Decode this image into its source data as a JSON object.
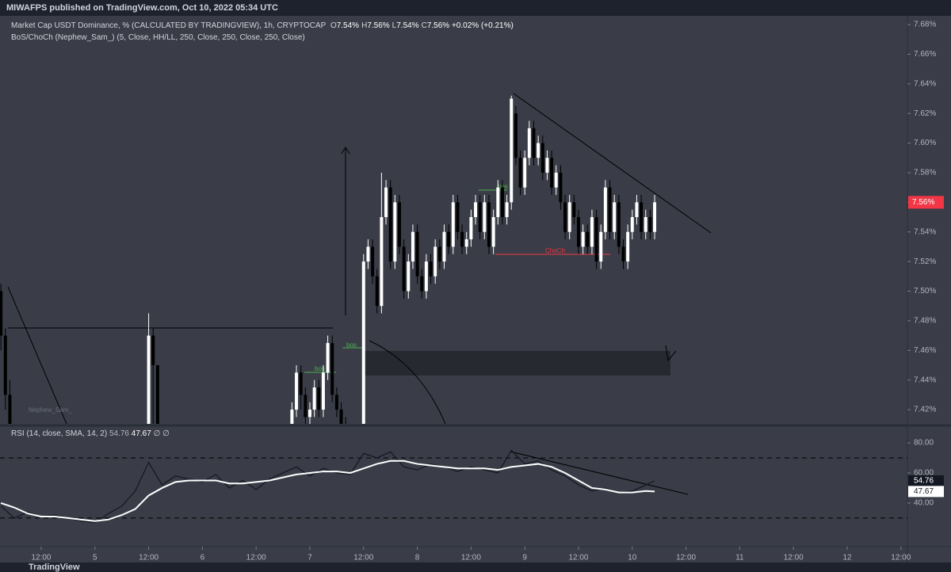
{
  "header": {
    "text": "MIWAFPS published on TradingView.com, Oct 10, 2022 05:34 UTC"
  },
  "footer": {
    "text": "TradingView"
  },
  "chart_data": [
    {
      "type": "candlestick",
      "title": "Market Cap USDT Dominance, % (CALCULATED BY TRADINGVIEW), 1h, CRYPTOCAP",
      "subtitle": "BoS/ChoCh (Nephew_Sam_) (5, Close, HH/LL, 250, Close, 250, Close, 250, Close)",
      "ohlc_legend": [
        {
          "key": "O",
          "value": "7.54%"
        },
        {
          "key": "H",
          "value": "7.56%"
        },
        {
          "key": "L",
          "value": "7.54%"
        },
        {
          "key": "C",
          "value": "7.56%"
        }
      ],
      "change": "+0.02% (+0.21%)",
      "last_label": "7.56%",
      "annotations": [
        "bos",
        "bos",
        "bos",
        "ChoCh",
        "Nephew_Sam_"
      ],
      "up_color": "#ffffff",
      "down_color": "#000000",
      "label_color": "#f23645",
      "x": [
        3,
        4,
        5,
        36,
        37,
        38,
        68,
        69,
        70,
        71,
        72,
        73,
        74,
        75,
        76,
        77,
        78,
        79,
        80,
        84,
        85,
        86,
        87,
        88,
        89,
        90,
        91,
        92,
        93,
        94,
        95,
        96,
        97,
        98,
        99,
        100,
        101,
        102,
        103,
        104,
        105,
        106,
        107,
        108,
        109,
        110,
        111,
        112,
        113,
        114,
        115,
        116,
        117,
        118,
        119,
        120,
        121,
        122,
        123,
        124,
        125,
        126,
        127,
        128,
        129,
        130,
        131,
        132,
        133,
        134,
        135,
        136,
        137,
        138,
        139,
        140,
        141,
        142,
        143,
        144,
        145,
        146,
        147,
        148,
        149
      ],
      "open": [
        7.5,
        7.47,
        7.43,
        7.4,
        7.47,
        7.45,
        7.4,
        7.42,
        7.445,
        7.43,
        7.415,
        7.42,
        7.435,
        7.42,
        7.445,
        7.465,
        7.43,
        7.42,
        7.41,
        7.41,
        7.52,
        7.53,
        7.51,
        7.49,
        7.55,
        7.57,
        7.52,
        7.56,
        7.53,
        7.5,
        7.52,
        7.54,
        7.51,
        7.5,
        7.52,
        7.51,
        7.53,
        7.52,
        7.54,
        7.53,
        7.56,
        7.54,
        7.53,
        7.535,
        7.55,
        7.56,
        7.54,
        7.56,
        7.53,
        7.55,
        7.57,
        7.55,
        7.56,
        7.62,
        7.59,
        7.57,
        7.59,
        7.61,
        7.59,
        7.6,
        7.58,
        7.59,
        7.57,
        7.58,
        7.56,
        7.54,
        7.56,
        7.55,
        7.53,
        7.54,
        7.53,
        7.55,
        7.52,
        7.54,
        7.57,
        7.54,
        7.56,
        7.53,
        7.52,
        7.54,
        7.55,
        7.56,
        7.54,
        7.55,
        7.54
      ],
      "high": [
        7.505,
        7.475,
        7.44,
        7.485,
        7.475,
        7.45,
        7.425,
        7.45,
        7.45,
        7.435,
        7.425,
        7.44,
        7.44,
        7.45,
        7.47,
        7.47,
        7.435,
        7.425,
        7.415,
        7.525,
        7.535,
        7.535,
        7.515,
        7.58,
        7.575,
        7.575,
        7.565,
        7.565,
        7.535,
        7.525,
        7.545,
        7.545,
        7.515,
        7.525,
        7.525,
        7.535,
        7.535,
        7.545,
        7.545,
        7.565,
        7.565,
        7.545,
        7.54,
        7.555,
        7.565,
        7.565,
        7.565,
        7.565,
        7.555,
        7.575,
        7.575,
        7.565,
        7.632,
        7.625,
        7.595,
        7.595,
        7.615,
        7.615,
        7.605,
        7.605,
        7.595,
        7.595,
        7.585,
        7.585,
        7.565,
        7.565,
        7.565,
        7.555,
        7.545,
        7.545,
        7.555,
        7.555,
        7.545,
        7.575,
        7.575,
        7.565,
        7.565,
        7.535,
        7.545,
        7.555,
        7.565,
        7.565,
        7.555,
        7.555,
        7.565
      ],
      "low": [
        7.46,
        7.42,
        7.4,
        7.39,
        7.41,
        7.4,
        7.4,
        7.415,
        7.42,
        7.41,
        7.405,
        7.415,
        7.415,
        7.415,
        7.44,
        7.425,
        7.415,
        7.405,
        7.395,
        7.405,
        7.515,
        7.505,
        7.485,
        7.485,
        7.545,
        7.515,
        7.515,
        7.525,
        7.495,
        7.495,
        7.515,
        7.505,
        7.495,
        7.495,
        7.505,
        7.505,
        7.515,
        7.515,
        7.525,
        7.525,
        7.535,
        7.525,
        7.525,
        7.53,
        7.545,
        7.535,
        7.535,
        7.525,
        7.525,
        7.545,
        7.545,
        7.545,
        7.555,
        7.585,
        7.565,
        7.565,
        7.585,
        7.585,
        7.585,
        7.575,
        7.575,
        7.565,
        7.565,
        7.555,
        7.535,
        7.535,
        7.545,
        7.525,
        7.525,
        7.525,
        7.525,
        7.515,
        7.515,
        7.535,
        7.535,
        7.535,
        7.525,
        7.515,
        7.515,
        7.535,
        7.545,
        7.535,
        7.535,
        7.535,
        7.535
      ],
      "close": [
        7.47,
        7.43,
        7.41,
        7.47,
        7.45,
        7.41,
        7.42,
        7.445,
        7.43,
        7.415,
        7.42,
        7.435,
        7.42,
        7.445,
        7.465,
        7.43,
        7.42,
        7.41,
        7.4,
        7.52,
        7.53,
        7.51,
        7.49,
        7.55,
        7.57,
        7.52,
        7.56,
        7.53,
        7.5,
        7.52,
        7.54,
        7.51,
        7.5,
        7.52,
        7.51,
        7.53,
        7.52,
        7.54,
        7.53,
        7.56,
        7.54,
        7.53,
        7.535,
        7.55,
        7.56,
        7.54,
        7.56,
        7.53,
        7.55,
        7.57,
        7.55,
        7.56,
        7.63,
        7.59,
        7.57,
        7.59,
        7.61,
        7.59,
        7.6,
        7.58,
        7.59,
        7.57,
        7.58,
        7.56,
        7.54,
        7.56,
        7.55,
        7.53,
        7.54,
        7.53,
        7.55,
        7.52,
        7.54,
        7.57,
        7.54,
        7.56,
        7.53,
        7.52,
        7.54,
        7.55,
        7.56,
        7.54,
        7.55,
        7.54,
        7.56
      ],
      "xlim": [
        2.8,
        205.45
      ],
      "ylim": [
        7.4104,
        7.6859
      ],
      "yticks": [
        {
          "value": 7.42,
          "label": "7.42%"
        },
        {
          "value": 7.44,
          "label": "7.44%"
        },
        {
          "value": 7.46,
          "label": "7.46%"
        },
        {
          "value": 7.48,
          "label": "7.48%"
        },
        {
          "value": 7.5,
          "label": "7.50%"
        },
        {
          "value": 7.52,
          "label": "7.52%"
        },
        {
          "value": 7.54,
          "label": "7.54%"
        },
        {
          "value": 7.56,
          "label": "7.56%"
        },
        {
          "value": 7.58,
          "label": "7.58%"
        },
        {
          "value": 7.6,
          "label": "7.60%"
        },
        {
          "value": 7.62,
          "label": "7.62%"
        },
        {
          "value": 7.64,
          "label": "7.64%"
        },
        {
          "value": 7.66,
          "label": "7.66%"
        },
        {
          "value": 7.68,
          "label": "7.68%"
        }
      ],
      "xticks": [
        {
          "value": 12,
          "label": "12:00"
        },
        {
          "value": 24,
          "label": "5"
        },
        {
          "value": 36,
          "label": "12:00"
        },
        {
          "value": 48,
          "label": "6"
        },
        {
          "value": 60,
          "label": "12:00"
        },
        {
          "value": 72,
          "label": "7"
        },
        {
          "value": 84,
          "label": "12:00"
        },
        {
          "value": 96,
          "label": "8"
        },
        {
          "value": 108,
          "label": "12:00"
        },
        {
          "value": 120,
          "label": "9"
        },
        {
          "value": 132,
          "label": "12:00"
        },
        {
          "value": 144,
          "label": "10"
        },
        {
          "value": 156,
          "label": "12:00"
        },
        {
          "value": 168,
          "label": "11"
        },
        {
          "value": 180,
          "label": "12:00"
        },
        {
          "value": 192,
          "label": "12"
        },
        {
          "value": 204,
          "label": "12:00"
        }
      ],
      "grid": false
    },
    {
      "type": "line",
      "title": "RSI (14, close, SMA, 14, 2)",
      "extra": [
        "∅",
        "∅"
      ],
      "x": [
        3,
        6,
        9,
        12,
        15,
        18,
        21,
        24,
        27,
        30,
        33,
        36,
        39,
        42,
        45,
        48,
        51,
        54,
        57,
        60,
        63,
        66,
        69,
        72,
        75,
        78,
        81,
        84,
        87,
        90,
        93,
        96,
        99,
        102,
        105,
        108,
        111,
        114,
        117,
        120,
        123,
        126,
        129,
        132,
        135,
        138,
        141,
        144,
        147,
        149
      ],
      "series": [
        {
          "name": "RSI",
          "color": "#131722",
          "values": [
            38,
            30,
            34,
            31,
            32,
            30,
            28,
            27,
            33,
            38,
            48,
            67,
            52,
            58,
            56,
            54,
            59,
            50,
            55,
            49,
            56,
            60,
            64,
            58,
            63,
            60,
            59,
            73,
            70,
            74,
            64,
            62,
            66,
            64,
            61,
            64,
            62,
            60,
            75,
            66,
            68,
            62,
            58,
            52,
            48,
            50,
            47,
            48,
            52,
            54.76
          ]
        },
        {
          "name": "SMA",
          "color": "#ffffff",
          "values": [
            40,
            37,
            33,
            31,
            31,
            30,
            29,
            28,
            29,
            32,
            36,
            45,
            50,
            54,
            55,
            55,
            55,
            53,
            53,
            54,
            55,
            57,
            59,
            60,
            61,
            61,
            60,
            63,
            66,
            68,
            68,
            66,
            65,
            64,
            63,
            63,
            63,
            62,
            64,
            65,
            66,
            64,
            60,
            55,
            50,
            49,
            47,
            47,
            48,
            47.67
          ]
        }
      ],
      "xlim": [
        2.8,
        205.45
      ],
      "ylim": [
        11,
        90
      ],
      "bands": [
        30,
        70
      ],
      "yticks": [
        {
          "value": 40,
          "label": "40.00"
        },
        {
          "value": 60,
          "label": "60.00"
        },
        {
          "value": 80,
          "label": "80.00"
        }
      ]
    }
  ]
}
